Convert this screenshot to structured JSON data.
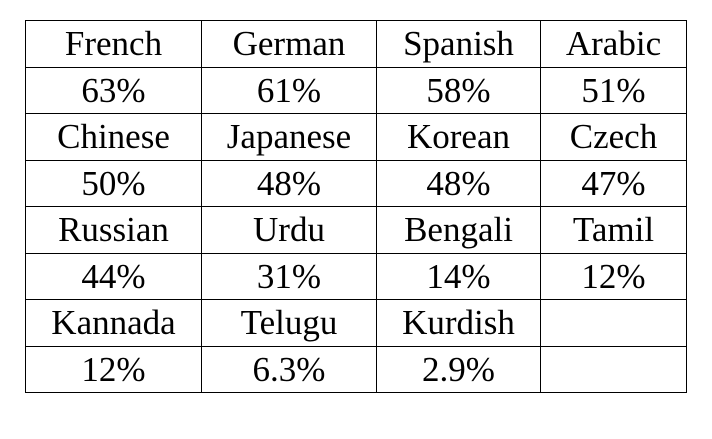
{
  "table": {
    "rows": [
      {
        "languages": [
          "French",
          "German",
          "Spanish",
          "Arabic"
        ],
        "percentages": [
          "63%",
          "61%",
          "58%",
          "51%"
        ]
      },
      {
        "languages": [
          "Chinese",
          "Japanese",
          "Korean",
          "Czech"
        ],
        "percentages": [
          "50%",
          "48%",
          "48%",
          "47%"
        ]
      },
      {
        "languages": [
          "Russian",
          "Urdu",
          "Bengali",
          "Tamil"
        ],
        "percentages": [
          "44%",
          "31%",
          "14%",
          "12%"
        ]
      },
      {
        "languages": [
          "Kannada",
          "Telugu",
          "Kurdish",
          ""
        ],
        "percentages": [
          "12%",
          "6.3%",
          "2.9%",
          ""
        ]
      }
    ]
  }
}
